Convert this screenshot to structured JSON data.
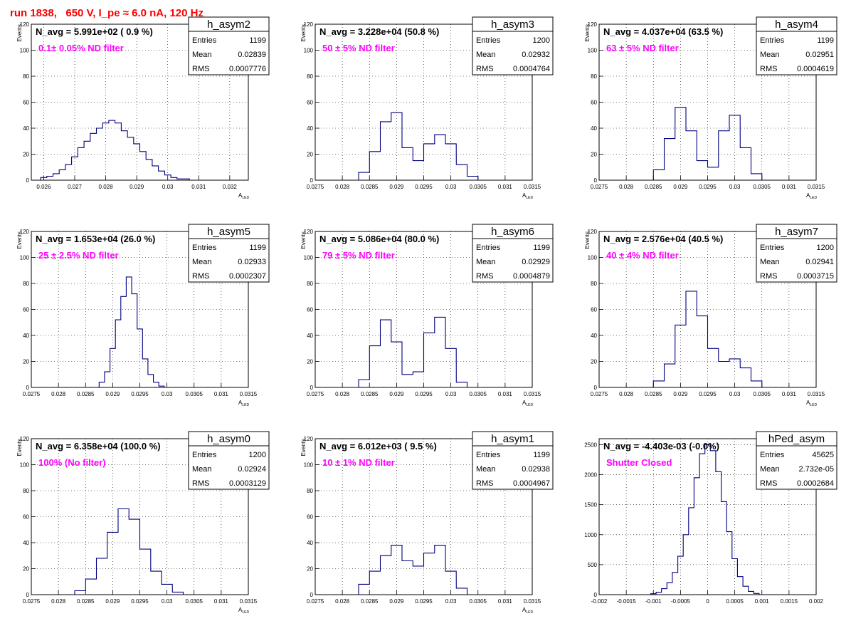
{
  "title": "run 1838,   650 V, I_pe ≈ 6.0 nA, 120 Hz",
  "colors": {
    "title": "#ff0000",
    "annotation": "#ff00ff",
    "histogram": "#000080",
    "grid": "#000000"
  },
  "chart_data": [
    {
      "type": "histogram",
      "name": "h_asym2",
      "navg": "N_avg = 5.991e+02 ( 0.9 %)",
      "filter": "0.1± 0.05% ND filter",
      "stats": {
        "Entries": "1199",
        "Mean": "0.02839",
        "RMS": "0.0007776"
      },
      "xlim": [
        0.0256,
        0.0326
      ],
      "ylim": [
        0,
        120
      ],
      "xticks": [
        0.026,
        0.027,
        0.028,
        0.029,
        0.03,
        0.031,
        0.032
      ],
      "xticklabels": [
        "0.026",
        "0.027",
        "0.028",
        "0.029",
        "0.03",
        "0.031",
        "0.032"
      ],
      "yticks": [
        0,
        20,
        40,
        60,
        80,
        100,
        120
      ],
      "xlabel": "A",
      "xlabel_sub": "LED",
      "ylabel": "Events",
      "x": [
        0.026,
        0.0262,
        0.0264,
        0.0266,
        0.0268,
        0.027,
        0.0272,
        0.0274,
        0.0276,
        0.0278,
        0.028,
        0.0282,
        0.0284,
        0.0286,
        0.0288,
        0.029,
        0.0292,
        0.0294,
        0.0296,
        0.0298,
        0.03,
        0.0302,
        0.0304,
        0.0306
      ],
      "values": [
        2,
        3,
        5,
        8,
        12,
        18,
        25,
        30,
        36,
        40,
        44,
        46,
        44,
        38,
        33,
        28,
        22,
        16,
        11,
        7,
        4,
        2,
        1,
        1
      ]
    },
    {
      "type": "histogram",
      "name": "h_asym3",
      "navg": "N_avg = 3.228e+04 (50.8 %)",
      "filter": "50 ± 5% ND filter",
      "stats": {
        "Entries": "1200",
        "Mean": "0.02932",
        "RMS": "0.0004764"
      },
      "xlim": [
        0.0275,
        0.0315
      ],
      "ylim": [
        0,
        120
      ],
      "xticks": [
        0.0275,
        0.028,
        0.0285,
        0.029,
        0.0295,
        0.03,
        0.0305,
        0.031,
        0.0315
      ],
      "xticklabels": [
        "0.0275",
        "0.028",
        "0.0285",
        "0.029",
        "0.0295",
        "0.03",
        "0.0305",
        "0.031",
        "0.0315"
      ],
      "yticks": [
        0,
        20,
        40,
        60,
        80,
        100,
        120
      ],
      "xlabel": "A",
      "xlabel_sub": "LED",
      "ylabel": "Events",
      "x": [
        0.0284,
        0.0286,
        0.0288,
        0.029,
        0.0292,
        0.0294,
        0.0296,
        0.0298,
        0.03,
        0.0302,
        0.0304
      ],
      "values": [
        6,
        22,
        45,
        52,
        25,
        15,
        28,
        35,
        28,
        12,
        3
      ]
    },
    {
      "type": "histogram",
      "name": "h_asym4",
      "navg": "N_avg = 4.037e+04 (63.5 %)",
      "filter": "63 ± 5% ND filter",
      "stats": {
        "Entries": "1199",
        "Mean": "0.02951",
        "RMS": "0.0004619"
      },
      "xlim": [
        0.0275,
        0.0315
      ],
      "ylim": [
        0,
        120
      ],
      "xticks": [
        0.0275,
        0.028,
        0.0285,
        0.029,
        0.0295,
        0.03,
        0.0305,
        0.031,
        0.0315
      ],
      "xticklabels": [
        "0.0275",
        "0.028",
        "0.0285",
        "0.029",
        "0.0295",
        "0.03",
        "0.0305",
        "0.031",
        "0.0315"
      ],
      "yticks": [
        0,
        20,
        40,
        60,
        80,
        100,
        120
      ],
      "xlabel": "A",
      "xlabel_sub": "LED",
      "ylabel": "Events",
      "x": [
        0.0286,
        0.0288,
        0.029,
        0.0292,
        0.0294,
        0.0296,
        0.0298,
        0.03,
        0.0302,
        0.0304
      ],
      "values": [
        8,
        32,
        56,
        38,
        15,
        10,
        38,
        50,
        25,
        5
      ]
    },
    {
      "type": "histogram",
      "name": "h_asym5",
      "navg": "N_avg = 1.653e+04 (26.0 %)",
      "filter": "25 ± 2.5% ND filter",
      "stats": {
        "Entries": "1199",
        "Mean": "0.02933",
        "RMS": "0.0002307"
      },
      "xlim": [
        0.0275,
        0.0315
      ],
      "ylim": [
        0,
        120
      ],
      "xticks": [
        0.0275,
        0.028,
        0.0285,
        0.029,
        0.0295,
        0.03,
        0.0305,
        0.031,
        0.0315
      ],
      "xticklabels": [
        "0.0275",
        "0.028",
        "0.0285",
        "0.029",
        "0.0295",
        "0.03",
        "0.0305",
        "0.031",
        "0.0315"
      ],
      "yticks": [
        0,
        20,
        40,
        60,
        80,
        100,
        120
      ],
      "xlabel": "A",
      "xlabel_sub": "LED",
      "ylabel": "Events",
      "x": [
        0.0288,
        0.0289,
        0.029,
        0.0291,
        0.0292,
        0.0293,
        0.0294,
        0.0295,
        0.0296,
        0.0297,
        0.0298,
        0.0299
      ],
      "values": [
        4,
        12,
        30,
        52,
        70,
        85,
        72,
        45,
        22,
        10,
        4,
        1
      ]
    },
    {
      "type": "histogram",
      "name": "h_asym6",
      "navg": "N_avg = 5.086e+04 (80.0 %)",
      "filter": "79 ± 5% ND filter",
      "stats": {
        "Entries": "1199",
        "Mean": "0.02929",
        "RMS": "0.0004879"
      },
      "xlim": [
        0.0275,
        0.0315
      ],
      "ylim": [
        0,
        120
      ],
      "xticks": [
        0.0275,
        0.028,
        0.0285,
        0.029,
        0.0295,
        0.03,
        0.0305,
        0.031,
        0.0315
      ],
      "xticklabels": [
        "0.0275",
        "0.028",
        "0.0285",
        "0.029",
        "0.0295",
        "0.03",
        "0.0305",
        "0.031",
        "0.0315"
      ],
      "yticks": [
        0,
        20,
        40,
        60,
        80,
        100,
        120
      ],
      "xlabel": "A",
      "xlabel_sub": "LED",
      "ylabel": "Events",
      "x": [
        0.0284,
        0.0286,
        0.0288,
        0.029,
        0.0292,
        0.0294,
        0.0296,
        0.0298,
        0.03,
        0.0302
      ],
      "values": [
        6,
        32,
        52,
        35,
        10,
        12,
        42,
        54,
        30,
        4
      ]
    },
    {
      "type": "histogram",
      "name": "h_asym7",
      "navg": "N_avg = 2.576e+04 (40.5 %)",
      "filter": "40 ± 4% ND filter",
      "stats": {
        "Entries": "1200",
        "Mean": "0.02941",
        "RMS": "0.0003715"
      },
      "xlim": [
        0.0275,
        0.0315
      ],
      "ylim": [
        0,
        120
      ],
      "xticks": [
        0.0275,
        0.028,
        0.0285,
        0.029,
        0.0295,
        0.03,
        0.0305,
        0.031,
        0.0315
      ],
      "xticklabels": [
        "0.0275",
        "0.028",
        "0.0285",
        "0.029",
        "0.0295",
        "0.03",
        "0.0305",
        "0.031",
        "0.0315"
      ],
      "yticks": [
        0,
        20,
        40,
        60,
        80,
        100,
        120
      ],
      "xlabel": "A",
      "xlabel_sub": "LED",
      "ylabel": "Events",
      "x": [
        0.0286,
        0.0288,
        0.029,
        0.0292,
        0.0294,
        0.0296,
        0.0298,
        0.03,
        0.0302,
        0.0304
      ],
      "values": [
        5,
        18,
        48,
        74,
        55,
        30,
        20,
        22,
        15,
        5
      ]
    },
    {
      "type": "histogram",
      "name": "h_asym0",
      "navg": "N_avg = 6.358e+04 (100.0 %)",
      "filter": "100% (No filter)",
      "stats": {
        "Entries": "1200",
        "Mean": "0.02924",
        "RMS": "0.0003129"
      },
      "xlim": [
        0.0275,
        0.0315
      ],
      "ylim": [
        0,
        120
      ],
      "xticks": [
        0.0275,
        0.028,
        0.0285,
        0.029,
        0.0295,
        0.03,
        0.0305,
        0.031,
        0.0315
      ],
      "xticklabels": [
        "0.0275",
        "0.028",
        "0.0285",
        "0.029",
        "0.0295",
        "0.03",
        "0.0305",
        "0.031",
        "0.0315"
      ],
      "yticks": [
        0,
        20,
        40,
        60,
        80,
        100,
        120
      ],
      "xlabel": "A",
      "xlabel_sub": "LED",
      "ylabel": "Events",
      "x": [
        0.0284,
        0.0286,
        0.0288,
        0.029,
        0.0292,
        0.0294,
        0.0296,
        0.0298,
        0.03,
        0.0302
      ],
      "values": [
        3,
        12,
        28,
        48,
        66,
        58,
        35,
        18,
        8,
        2
      ]
    },
    {
      "type": "histogram",
      "name": "h_asym1",
      "navg": "N_avg = 6.012e+03 ( 9.5 %)",
      "filter": "10 ± 1% ND filter",
      "stats": {
        "Entries": "1199",
        "Mean": "0.02938",
        "RMS": "0.0004967"
      },
      "xlim": [
        0.0275,
        0.0315
      ],
      "ylim": [
        0,
        120
      ],
      "xticks": [
        0.0275,
        0.028,
        0.0285,
        0.029,
        0.0295,
        0.03,
        0.0305,
        0.031,
        0.0315
      ],
      "xticklabels": [
        "0.0275",
        "0.028",
        "0.0285",
        "0.029",
        "0.0295",
        "0.03",
        "0.0305",
        "0.031",
        "0.0315"
      ],
      "yticks": [
        0,
        20,
        40,
        60,
        80,
        100,
        120
      ],
      "xlabel": "A",
      "xlabel_sub": "LED",
      "ylabel": "Events",
      "x": [
        0.0284,
        0.0286,
        0.0288,
        0.029,
        0.0292,
        0.0294,
        0.0296,
        0.0298,
        0.03,
        0.0302
      ],
      "values": [
        8,
        18,
        30,
        38,
        26,
        22,
        32,
        38,
        18,
        5
      ]
    },
    {
      "type": "histogram",
      "name": "hPed_asym",
      "navg": "N_avg = -4.403e-03 (-0.0%)",
      "filter": "Shutter Closed",
      "stats": {
        "Entries": "45625",
        "Mean": "2.732e-05",
        "RMS": "0.0002684"
      },
      "xlim": [
        -0.002,
        0.002
      ],
      "ylim": [
        0,
        2600
      ],
      "xticks": [
        -0.002,
        -0.0015,
        -0.001,
        -0.0005,
        0,
        0.0005,
        0.001,
        0.0015,
        0.002
      ],
      "xticklabels": [
        "-0.002",
        "-0.0015",
        "-0.001",
        "-0.0005",
        "0",
        "0.0005",
        "0.001",
        "0.0015",
        "0.002"
      ],
      "yticks": [
        0,
        500,
        1000,
        1500,
        2000,
        2500
      ],
      "xlabel": "",
      "xlabel_sub": "",
      "ylabel": "",
      "x": [
        -0.001,
        -0.0009,
        -0.0008,
        -0.0007,
        -0.0006,
        -0.0005,
        -0.0004,
        -0.0003,
        -0.0002,
        -0.0001,
        0.0,
        0.0001,
        0.0002,
        0.0003,
        0.0004,
        0.0005,
        0.0006,
        0.0007,
        0.0008,
        0.0009
      ],
      "values": [
        15,
        40,
        100,
        200,
        370,
        640,
        1000,
        1450,
        1950,
        2350,
        2500,
        2400,
        2050,
        1550,
        1050,
        600,
        300,
        140,
        55,
        20
      ]
    }
  ]
}
